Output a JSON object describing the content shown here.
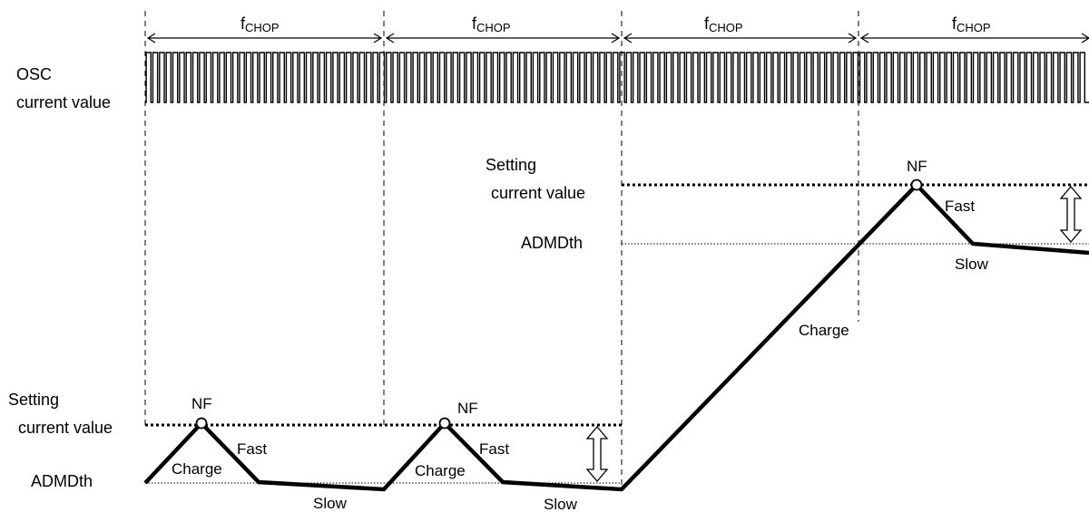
{
  "labels": {
    "period_main": "f",
    "period_sub": "CHOP",
    "osc_line1": "OSC",
    "osc_line2": "current value",
    "setting_line1": "Setting",
    "setting_line2": "current value",
    "admd": "ADMDth",
    "nf": "NF",
    "fast": "Fast",
    "charge": "Charge",
    "slow": "Slow"
  },
  "colors": {
    "line": "#000000",
    "background": "#ffffff"
  }
}
